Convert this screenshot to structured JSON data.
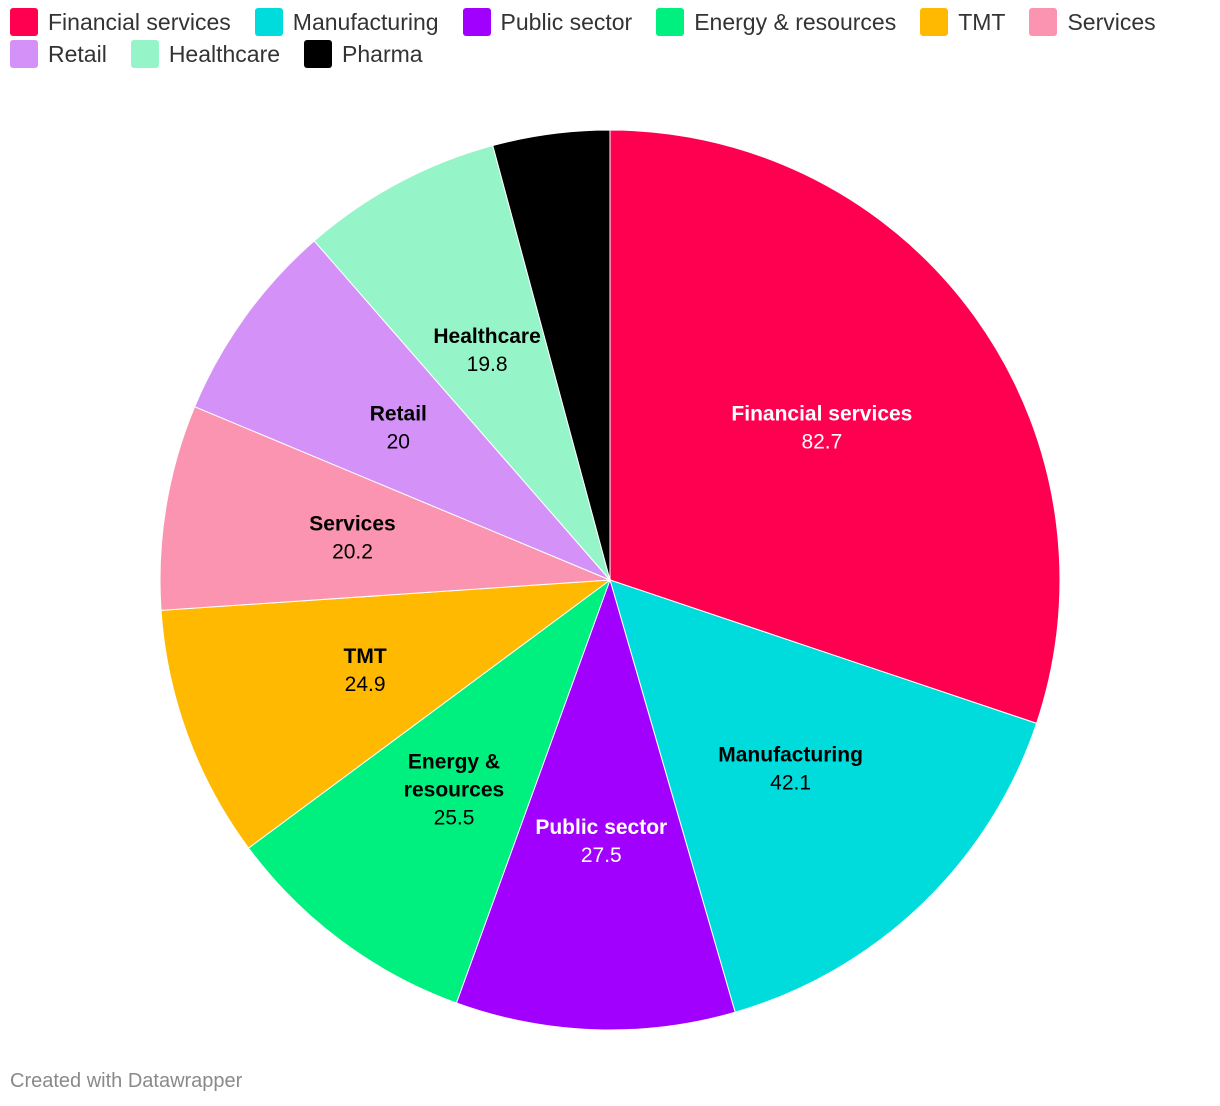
{
  "chart_data": {
    "type": "pie",
    "title": "",
    "legend_position": "top-left",
    "slices": [
      {
        "name": "Financial services",
        "label_lines": [
          "Financial services"
        ],
        "value": 82.7,
        "display_value": "82.7",
        "color": "#ff0050",
        "label_color": "#ffffff",
        "show_label": true
      },
      {
        "name": "Manufacturing",
        "label_lines": [
          "Manufacturing"
        ],
        "value": 42.1,
        "display_value": "42.1",
        "color": "#00dcdc",
        "label_color": "#000000",
        "show_label": true
      },
      {
        "name": "Public sector",
        "label_lines": [
          "Public sector"
        ],
        "value": 27.5,
        "display_value": "27.5",
        "color": "#a100ff",
        "label_color": "#ffffff",
        "show_label": true
      },
      {
        "name": "Energy & resources",
        "label_lines": [
          "Energy &",
          "resources"
        ],
        "value": 25.5,
        "display_value": "25.5",
        "color": "#00f07f",
        "label_color": "#000000",
        "show_label": true
      },
      {
        "name": "TMT",
        "label_lines": [
          "TMT"
        ],
        "value": 24.9,
        "display_value": "24.9",
        "color": "#ffb900",
        "label_color": "#000000",
        "show_label": true
      },
      {
        "name": "Services",
        "label_lines": [
          "Services"
        ],
        "value": 20.2,
        "display_value": "20.2",
        "color": "#fb94b0",
        "label_color": "#000000",
        "show_label": true
      },
      {
        "name": "Retail",
        "label_lines": [
          "Retail"
        ],
        "value": 20,
        "display_value": "20",
        "color": "#d491f8",
        "label_color": "#000000",
        "show_label": true
      },
      {
        "name": "Healthcare",
        "label_lines": [
          "Healthcare"
        ],
        "value": 19.8,
        "display_value": "19.8",
        "color": "#96f5c8",
        "label_color": "#000000",
        "show_label": true
      },
      {
        "name": "Pharma",
        "label_lines": [
          "Pharma"
        ],
        "value": 11.5,
        "display_value": "",
        "color": "#000000",
        "label_color": "#ffffff",
        "show_label": false
      }
    ]
  },
  "footer": {
    "credit": "Created with Datawrapper"
  }
}
